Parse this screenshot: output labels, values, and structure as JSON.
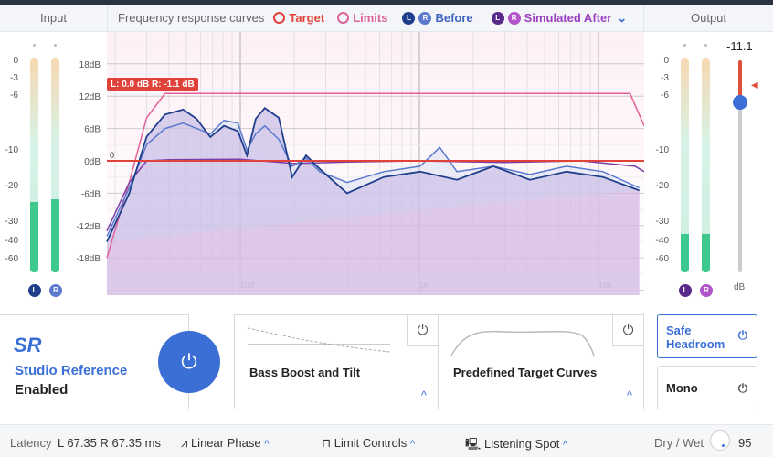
{
  "header": {
    "input_label": "Input",
    "output_label": "Output",
    "curves_label": "Frequency response curves",
    "legend": {
      "target": "Target",
      "limits": "Limits",
      "before": "Before",
      "simulated_after": "Simulated After",
      "l": "L",
      "r": "R"
    }
  },
  "input_meter": {
    "scale": [
      "0",
      "-3",
      "-6",
      "-10",
      "-20",
      "-30",
      "-40",
      "-60"
    ],
    "level_left": 0.33,
    "level_right": 0.34
  },
  "output_meter": {
    "scale": [
      "0",
      "-3",
      "-6",
      "-10",
      "-20",
      "-30",
      "-40",
      "-60"
    ],
    "value": "-11.1",
    "unit": "dB",
    "level_left": 0.18,
    "level_right": 0.18,
    "gain_fraction": 0.2
  },
  "chart": {
    "y_ticks": [
      "18dB",
      "12dB",
      "6dB",
      "0dB",
      "-6dB",
      "-12dB",
      "-18dB"
    ],
    "x_ticks": [
      "100",
      "1k",
      "10k"
    ],
    "zero_label": "0",
    "tooltip": "L: 0.0 dB R: -1.1 dB",
    "colors": {
      "target": "#e0423a",
      "limits": "#e0609a",
      "before_l": "#1f3e8c",
      "before_r": "#5a79cf",
      "after": "#7a3fa6"
    },
    "chart_data": {
      "type": "line",
      "x_scale": "log",
      "ylim": [
        -24,
        24
      ],
      "series": [
        {
          "key": "limits",
          "points": [
            [
              18,
              -18
            ],
            [
              24,
              -4
            ],
            [
              30,
              8
            ],
            [
              38,
              12.5
            ],
            [
              15000,
              12.5
            ],
            [
              18000,
              6.5
            ]
          ]
        },
        {
          "key": "target",
          "points": [
            [
              18,
              0
            ],
            [
              18000,
              0
            ]
          ]
        },
        {
          "key": "before_r",
          "points": [
            [
              18,
              -14
            ],
            [
              24,
              -5
            ],
            [
              30,
              3
            ],
            [
              38,
              6
            ],
            [
              48,
              7
            ],
            [
              57,
              6
            ],
            [
              68,
              5
            ],
            [
              81,
              7.5
            ],
            [
              97,
              7
            ],
            [
              109,
              2
            ],
            [
              122,
              5
            ],
            [
              137,
              6.5
            ],
            [
              164,
              4
            ],
            [
              195,
              -1
            ],
            [
              233,
              0.5
            ],
            [
              278,
              -2
            ],
            [
              395,
              -4
            ],
            [
              633,
              -2
            ],
            [
              1010,
              -1
            ],
            [
              1300,
              2.5
            ],
            [
              1620,
              -2
            ],
            [
              2590,
              -1
            ],
            [
              4140,
              -2.5
            ],
            [
              6620,
              -1
            ],
            [
              10600,
              -2
            ],
            [
              16900,
              -5
            ]
          ]
        },
        {
          "key": "before_l",
          "points": [
            [
              18,
              -15
            ],
            [
              24,
              -6
            ],
            [
              30,
              4.5
            ],
            [
              38,
              8.6
            ],
            [
              48,
              9.5
            ],
            [
              57,
              7.8
            ],
            [
              68,
              4.4
            ],
            [
              81,
              6.5
            ],
            [
              97,
              5.5
            ],
            [
              109,
              1
            ],
            [
              122,
              7.8
            ],
            [
              137,
              9.8
            ],
            [
              164,
              8
            ],
            [
              195,
              -3
            ],
            [
              233,
              1
            ],
            [
              278,
              -1.5
            ],
            [
              395,
              -6
            ],
            [
              633,
              -3
            ],
            [
              1010,
              -2
            ],
            [
              1620,
              -3.5
            ],
            [
              2590,
              -1
            ],
            [
              4140,
              -3.5
            ],
            [
              6620,
              -2
            ],
            [
              10600,
              -3
            ],
            [
              16900,
              -5.5
            ]
          ]
        },
        {
          "key": "after",
          "points": [
            [
              18,
              -13
            ],
            [
              24,
              -4
            ],
            [
              30,
              0
            ],
            [
              40,
              0.2
            ],
            [
              100,
              0.3
            ],
            [
              200,
              -0.5
            ],
            [
              400,
              -0.2
            ],
            [
              1000,
              0
            ],
            [
              3000,
              -0.3
            ],
            [
              8000,
              0
            ],
            [
              16000,
              -1
            ],
            [
              18000,
              -2
            ]
          ]
        }
      ]
    }
  },
  "sr": {
    "logo": "SR",
    "title": "Studio Reference",
    "status": "Enabled"
  },
  "panels": {
    "bass": "Bass Boost and Tilt",
    "target_curves": "Predefined Target Curves"
  },
  "buttons": {
    "safe_headroom": "Safe Headroom",
    "mono": "Mono"
  },
  "footer": {
    "latency_label": "Latency",
    "latency_value": "L 67.35  R 67.35 ms",
    "linear_phase": "Linear Phase",
    "limit_controls": "Limit Controls",
    "listening_spot": "Listening Spot",
    "dry_wet_label": "Dry / Wet",
    "dry_wet_value": "95"
  }
}
